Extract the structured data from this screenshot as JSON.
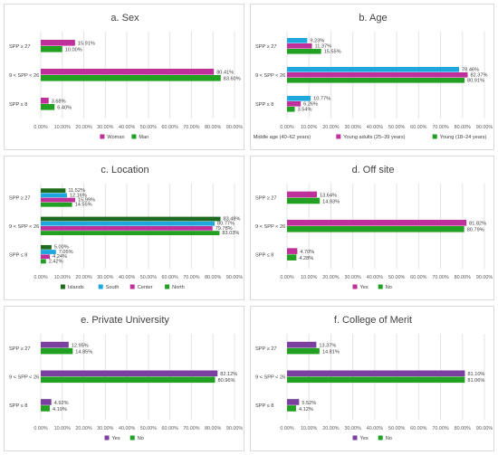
{
  "chart_data": [
    {
      "type": "bar",
      "title": "a. Sex",
      "categories": [
        "SPP ≥ 27",
        "9 < SPP < 26",
        "SPP ≤ 8"
      ],
      "series": [
        {
          "name": "Woman",
          "color": "#c0309a",
          "values": [
            15.91,
            80.41,
            3.68
          ]
        },
        {
          "name": "Man",
          "color": "#22a022",
          "values": [
            10.0,
            83.6,
            6.4
          ]
        }
      ],
      "ticks": [
        "0.00%",
        "10.00%",
        "20.00%",
        "30.00%",
        "40.00%",
        "50.00%",
        "60.00%",
        "70.00%",
        "80.00%",
        "90.00%"
      ],
      "xlim": [
        0,
        90
      ],
      "legend": "bottom-center"
    },
    {
      "type": "bar",
      "title": "b. Age",
      "categories": [
        "SPP ≥ 27",
        "9 < SPP < 26",
        "SPP ≤ 8"
      ],
      "series": [
        {
          "name": "Middle age (40–62 years)",
          "color": "#1ea7dc",
          "values": [
            9.23,
            78.46,
            10.77
          ]
        },
        {
          "name": "Young adults (25–39 years)",
          "color": "#c0309a",
          "values": [
            11.37,
            82.37,
            6.26
          ]
        },
        {
          "name": "Young (18–24 years)",
          "color": "#22a022",
          "values": [
            15.55,
            80.91,
            3.54
          ]
        }
      ],
      "ticks": [
        "0.00%",
        "10.00%",
        "20.00%",
        "30.00%",
        "40.00%",
        "50.00%",
        "60.00%",
        "70.00%",
        "80.00%",
        "90.00%"
      ],
      "xlim": [
        0,
        90
      ],
      "legend": "bottom-center"
    },
    {
      "type": "bar",
      "title": "c. Location",
      "categories": [
        "SPP ≥ 27",
        "9 < SPP < 26",
        "SPP ≤ 8"
      ],
      "series": [
        {
          "name": "Islands",
          "color": "#1e6b1e",
          "values": [
            11.52,
            83.48,
            5.0
          ]
        },
        {
          "name": "South",
          "color": "#1ea7dc",
          "values": [
            12.16,
            80.77,
            7.05
          ]
        },
        {
          "name": "Center",
          "color": "#c0309a",
          "values": [
            15.99,
            79.78,
            4.24
          ]
        },
        {
          "name": "North",
          "color": "#22a022",
          "values": [
            14.55,
            83.03,
            2.42
          ]
        }
      ],
      "ticks": [
        "0.00%",
        "10.00%",
        "20.00%",
        "30.00%",
        "40.00%",
        "50.00%",
        "60.00%",
        "70.00%",
        "80.00%",
        "90.00%"
      ],
      "xlim": [
        0,
        90
      ],
      "legend": "bottom-center"
    },
    {
      "type": "bar",
      "title": "d. Off site",
      "categories": [
        "SPP ≥ 27",
        "9 < SPP < 26",
        "SPP ≤ 8"
      ],
      "series": [
        {
          "name": "Yes",
          "color": "#c0309a",
          "values": [
            13.64,
            81.82,
            4.7
          ]
        },
        {
          "name": "No",
          "color": "#22a022",
          "values": [
            14.93,
            80.79,
            4.28
          ]
        }
      ],
      "ticks": [
        "0.00%",
        "10.00%",
        "20.00%",
        "30.00%",
        "40.00%",
        "50.00%",
        "60.00%",
        "70.00%",
        "80.00%",
        "90.00%"
      ],
      "xlim": [
        0,
        90
      ],
      "legend": "bottom-center"
    },
    {
      "type": "bar",
      "title": "e. Private University",
      "categories": [
        "SPP ≥ 27",
        "9 < SPP < 26",
        "SPP ≤ 8"
      ],
      "series": [
        {
          "name": "Yes",
          "color": "#7b3fa0",
          "values": [
            12.95,
            82.12,
            4.92
          ]
        },
        {
          "name": "No",
          "color": "#22a022",
          "values": [
            14.85,
            80.96,
            4.19
          ]
        }
      ],
      "ticks": [
        "0.00%",
        "10.00%",
        "20.00%",
        "30.00%",
        "40.00%",
        "50.00%",
        "60.00%",
        "70.00%",
        "80.00%",
        "90.00%"
      ],
      "xlim": [
        0,
        90
      ],
      "legend": "bottom-center"
    },
    {
      "type": "bar",
      "title": "f. College of Merit",
      "categories": [
        "SPP ≥ 27",
        "9 < SPP < 26",
        "SPP ≤ 8"
      ],
      "series": [
        {
          "name": "Yes",
          "color": "#7b3fa0",
          "values": [
            13.37,
            81.1,
            5.52
          ]
        },
        {
          "name": "No",
          "color": "#22a022",
          "values": [
            14.81,
            81.06,
            4.12
          ]
        }
      ],
      "ticks": [
        "0.00%",
        "10.00%",
        "20.00%",
        "30.00%",
        "40.00%",
        "50.00%",
        "60.00%",
        "70.00%",
        "80.00%",
        "90.00%"
      ],
      "xlim": [
        0,
        90
      ],
      "legend": "bottom-center"
    }
  ]
}
